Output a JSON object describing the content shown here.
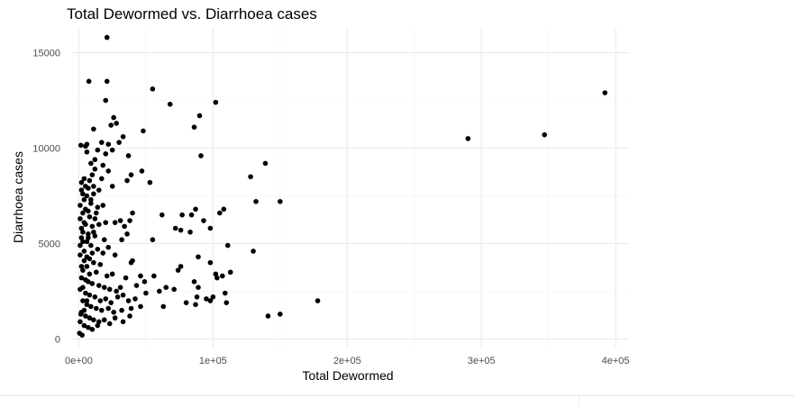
{
  "chart_data": {
    "type": "scatter",
    "title": "Total Dewormed vs. Diarrhoea cases",
    "xlabel": "Total Dewormed",
    "ylabel": "Diarrhoea cases",
    "xlim": [
      -5000,
      410000
    ],
    "ylim": [
      -500,
      16300
    ],
    "x_ticks": [
      0,
      100000,
      200000,
      300000,
      400000
    ],
    "x_tick_labels": [
      "0e+00",
      "1e+05",
      "2e+05",
      "3e+05",
      "4e+05"
    ],
    "y_ticks": [
      0,
      5000,
      10000,
      15000
    ],
    "y_tick_labels": [
      "0",
      "5000",
      "10000",
      "15000"
    ],
    "grid": true,
    "point_color": "#000000",
    "points": [
      [
        21000,
        15800
      ],
      [
        7500,
        13500
      ],
      [
        21000,
        13500
      ],
      [
        55000,
        13100
      ],
      [
        68000,
        12300
      ],
      [
        102000,
        12400
      ],
      [
        20000,
        12500
      ],
      [
        90000,
        11700
      ],
      [
        86000,
        11100
      ],
      [
        26000,
        11600
      ],
      [
        28000,
        11300
      ],
      [
        48000,
        10900
      ],
      [
        11000,
        11000
      ],
      [
        24000,
        11200
      ],
      [
        17000,
        10300
      ],
      [
        22000,
        10200
      ],
      [
        33000,
        10600
      ],
      [
        1500,
        10150
      ],
      [
        6000,
        10200
      ],
      [
        5000,
        10100
      ],
      [
        30000,
        10300
      ],
      [
        6000,
        9800
      ],
      [
        14000,
        9900
      ],
      [
        25000,
        9900
      ],
      [
        20000,
        9700
      ],
      [
        12000,
        9400
      ],
      [
        9000,
        9200
      ],
      [
        37000,
        9600
      ],
      [
        91000,
        9600
      ],
      [
        139000,
        9200
      ],
      [
        128000,
        8500
      ],
      [
        47000,
        8800
      ],
      [
        39000,
        8600
      ],
      [
        53000,
        8200
      ],
      [
        36000,
        8300
      ],
      [
        22000,
        8800
      ],
      [
        17000,
        8400
      ],
      [
        5000,
        8000
      ],
      [
        2000,
        8200
      ],
      [
        10000,
        8600
      ],
      [
        8000,
        8300
      ],
      [
        15000,
        7800
      ],
      [
        25000,
        8000
      ],
      [
        132000,
        7200
      ],
      [
        150000,
        7200
      ],
      [
        2000,
        7800
      ],
      [
        6000,
        7500
      ],
      [
        11000,
        7600
      ],
      [
        4000,
        7300
      ],
      [
        1000,
        7000
      ],
      [
        9000,
        7100
      ],
      [
        14000,
        6900
      ],
      [
        18000,
        7000
      ],
      [
        3000,
        6600
      ],
      [
        7000,
        6700
      ],
      [
        12000,
        6300
      ],
      [
        27000,
        6100
      ],
      [
        40000,
        6600
      ],
      [
        38000,
        6200
      ],
      [
        31000,
        6200
      ],
      [
        105000,
        6600
      ],
      [
        108000,
        6800
      ],
      [
        87000,
        6800
      ],
      [
        84000,
        6500
      ],
      [
        77000,
        6500
      ],
      [
        62000,
        6500
      ],
      [
        93000,
        6200
      ],
      [
        1000,
        6300
      ],
      [
        5000,
        6000
      ],
      [
        10000,
        5900
      ],
      [
        15000,
        6000
      ],
      [
        20000,
        6100
      ],
      [
        34000,
        5900
      ],
      [
        72000,
        5800
      ],
      [
        76000,
        5700
      ],
      [
        83000,
        5600
      ],
      [
        98000,
        5800
      ],
      [
        3000,
        5600
      ],
      [
        7000,
        5500
      ],
      [
        12000,
        5400
      ],
      [
        19000,
        5200
      ],
      [
        36000,
        5500
      ],
      [
        32000,
        5200
      ],
      [
        55000,
        5200
      ],
      [
        111000,
        4900
      ],
      [
        2000,
        5300
      ],
      [
        6000,
        5100
      ],
      [
        9000,
        4900
      ],
      [
        14000,
        4700
      ],
      [
        18000,
        4500
      ],
      [
        22000,
        4800
      ],
      [
        27000,
        4400
      ],
      [
        130000,
        4600
      ],
      [
        4000,
        4600
      ],
      [
        1000,
        4400
      ],
      [
        8000,
        4200
      ],
      [
        11000,
        4000
      ],
      [
        16000,
        3900
      ],
      [
        40000,
        4100
      ],
      [
        39000,
        4000
      ],
      [
        89000,
        4300
      ],
      [
        98000,
        4000
      ],
      [
        6000,
        3800
      ],
      [
        3000,
        3600
      ],
      [
        13000,
        3500
      ],
      [
        21000,
        3300
      ],
      [
        25000,
        3400
      ],
      [
        35000,
        3200
      ],
      [
        46000,
        3300
      ],
      [
        49000,
        3000
      ],
      [
        56000,
        3300
      ],
      [
        76000,
        3800
      ],
      [
        74000,
        3600
      ],
      [
        102000,
        3400
      ],
      [
        103000,
        3200
      ],
      [
        107000,
        3300
      ],
      [
        113000,
        3500
      ],
      [
        2000,
        3200
      ],
      [
        7000,
        3000
      ],
      [
        10000,
        2900
      ],
      [
        15000,
        2800
      ],
      [
        19000,
        2700
      ],
      [
        23000,
        2600
      ],
      [
        28000,
        2500
      ],
      [
        31000,
        2700
      ],
      [
        43000,
        2800
      ],
      [
        50000,
        2400
      ],
      [
        60000,
        2500
      ],
      [
        65000,
        2700
      ],
      [
        86000,
        3000
      ],
      [
        89000,
        2700
      ],
      [
        1000,
        2600
      ],
      [
        5000,
        2400
      ],
      [
        8000,
        2300
      ],
      [
        12000,
        2200
      ],
      [
        16000,
        2000
      ],
      [
        20000,
        2100
      ],
      [
        24000,
        1900
      ],
      [
        29000,
        2200
      ],
      [
        33000,
        2300
      ],
      [
        37000,
        2000
      ],
      [
        42000,
        2100
      ],
      [
        71000,
        2600
      ],
      [
        88000,
        2200
      ],
      [
        95000,
        2100
      ],
      [
        98000,
        2000
      ],
      [
        100000,
        2200
      ],
      [
        109000,
        2400
      ],
      [
        110000,
        1900
      ],
      [
        178000,
        2000
      ],
      [
        3000,
        2000
      ],
      [
        6000,
        1800
      ],
      [
        9000,
        1700
      ],
      [
        13000,
        1600
      ],
      [
        17000,
        1500
      ],
      [
        22000,
        1600
      ],
      [
        26000,
        1400
      ],
      [
        32000,
        1500
      ],
      [
        39000,
        1600
      ],
      [
        46000,
        1700
      ],
      [
        63000,
        1700
      ],
      [
        80000,
        1900
      ],
      [
        87000,
        1800
      ],
      [
        2000,
        1400
      ],
      [
        5000,
        1200
      ],
      [
        8000,
        1100
      ],
      [
        11000,
        1000
      ],
      [
        15000,
        900
      ],
      [
        19000,
        1000
      ],
      [
        23000,
        800
      ],
      [
        27000,
        1100
      ],
      [
        33000,
        900
      ],
      [
        38000,
        1200
      ],
      [
        150000,
        1300
      ],
      [
        141000,
        1200
      ],
      [
        1000,
        900
      ],
      [
        4000,
        700
      ],
      [
        7000,
        600
      ],
      [
        10000,
        500
      ],
      [
        14000,
        700
      ],
      [
        500,
        300
      ],
      [
        2500,
        200
      ],
      [
        1500,
        1300
      ],
      [
        4000,
        1500
      ],
      [
        6000,
        2000
      ],
      [
        3000,
        2700
      ],
      [
        5000,
        3100
      ],
      [
        8000,
        3400
      ],
      [
        2000,
        3800
      ],
      [
        4000,
        4100
      ],
      [
        6000,
        4300
      ],
      [
        10000,
        4500
      ],
      [
        1000,
        4900
      ],
      [
        3000,
        5100
      ],
      [
        7000,
        5300
      ],
      [
        11000,
        5600
      ],
      [
        2000,
        5800
      ],
      [
        4000,
        6100
      ],
      [
        8000,
        6400
      ],
      [
        13000,
        6600
      ],
      [
        5000,
        6800
      ],
      [
        9000,
        7300
      ],
      [
        3000,
        7600
      ],
      [
        7000,
        7900
      ],
      [
        11000,
        8000
      ],
      [
        4000,
        8400
      ],
      [
        12000,
        8900
      ],
      [
        18000,
        9100
      ],
      [
        290000,
        10500
      ],
      [
        347000,
        10700
      ],
      [
        392000,
        12900
      ]
    ]
  }
}
